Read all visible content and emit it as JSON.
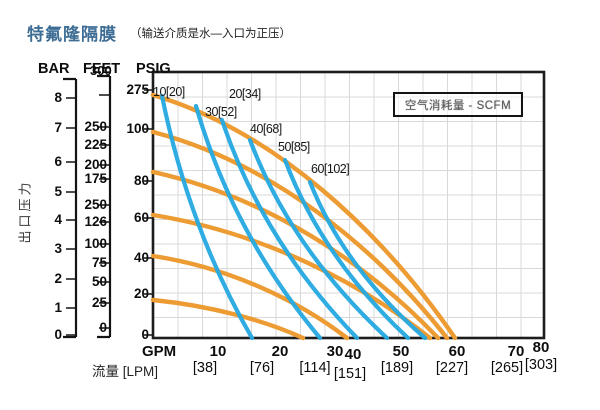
{
  "title": {
    "main": "特氟隆隔膜",
    "note": "（输送介质是水—入口为正压）"
  },
  "y_axis": {
    "axis_title": "出口压力",
    "bar": {
      "header": "BAR",
      "ticks": [
        "8",
        "7",
        "6",
        "5",
        "4",
        "3",
        "2",
        "1",
        "0"
      ]
    },
    "feet": {
      "header": "FEET",
      "header_overlap": "300",
      "ticks": [
        "250",
        "225",
        "200",
        "175",
        "250",
        "126",
        "100",
        "75",
        "50",
        "25",
        "0"
      ]
    },
    "psig": {
      "header": "PSIG",
      "ticks": [
        "275",
        "100",
        "80",
        "60",
        "40",
        "20",
        "0"
      ]
    }
  },
  "x_axis": {
    "unit_label": "GPM",
    "flow_label": "流量 [LPM]",
    "gpm_ticks": [
      "10",
      "20",
      "30",
      "40",
      "50",
      "60",
      "70",
      "80"
    ],
    "lpm_ticks": [
      "[38]",
      "[76]",
      "[114]",
      "[151]",
      "[189]",
      "[227]",
      "[265]",
      "[303]"
    ]
  },
  "legend": {
    "label": "空气消耗量 - SCFM"
  },
  "curve_labels": [
    "10[20]",
    "20[34]",
    "30[52]",
    "40[68]",
    "50[85]",
    "60[102]"
  ],
  "chart_data": {
    "type": "line",
    "title": "特氟隆隔膜（输送介质是水—入口为正压）",
    "xlabel": "流量 GPM [LPM]",
    "ylabel": "出口压力 BAR / FEET / PSIG",
    "x_ticks_gpm": [
      10,
      20,
      30,
      40,
      50,
      60,
      70,
      80
    ],
    "x_ticks_lpm": [
      38,
      76,
      114,
      151,
      189,
      227,
      265,
      303
    ],
    "y_ticks_bar": [
      0,
      1,
      2,
      3,
      4,
      5,
      6,
      7,
      8
    ],
    "y_ticks_feet_as_printed": [
      0,
      25,
      50,
      75,
      100,
      126,
      250,
      175,
      200,
      225,
      250
    ],
    "y_ticks_psig_as_printed": [
      0,
      20,
      40,
      60,
      80,
      100,
      275
    ],
    "grid": true,
    "legend": "空气消耗量 - SCFM",
    "legend_position": "top-right",
    "series": [
      {
        "name": "discharge-pressure-curve-1",
        "color": "#ED9B33",
        "units": "GPM,PSIG",
        "points": [
          [
            0,
            112
          ],
          [
            15,
            100
          ],
          [
            30,
            75
          ],
          [
            45,
            42
          ],
          [
            61,
            0
          ]
        ]
      },
      {
        "name": "discharge-pressure-curve-2",
        "color": "#ED9B33",
        "units": "GPM,PSIG",
        "points": [
          [
            0,
            98
          ],
          [
            15,
            86
          ],
          [
            30,
            62
          ],
          [
            45,
            34
          ],
          [
            60,
            0
          ]
        ]
      },
      {
        "name": "discharge-pressure-curve-3",
        "color": "#ED9B33",
        "units": "GPM,PSIG",
        "points": [
          [
            0,
            83
          ],
          [
            15,
            72
          ],
          [
            30,
            50
          ],
          [
            45,
            26
          ],
          [
            58,
            0
          ]
        ]
      },
      {
        "name": "discharge-pressure-curve-4",
        "color": "#ED9B33",
        "units": "GPM,PSIG",
        "points": [
          [
            0,
            60
          ],
          [
            15,
            52
          ],
          [
            30,
            36
          ],
          [
            45,
            18
          ],
          [
            57,
            0
          ]
        ]
      },
      {
        "name": "discharge-pressure-curve-5",
        "color": "#ED9B33",
        "units": "GPM,PSIG",
        "points": [
          [
            0,
            40
          ],
          [
            10,
            34
          ],
          [
            25,
            20
          ],
          [
            40,
            0
          ]
        ]
      },
      {
        "name": "discharge-pressure-curve-6",
        "color": "#ED9B33",
        "units": "GPM,PSIG",
        "points": [
          [
            0,
            16
          ],
          [
            10,
            11
          ],
          [
            20,
            6
          ],
          [
            31,
            0
          ]
        ]
      },
      {
        "name": "air-consumption-10[20]",
        "label": "10[20]",
        "color": "#27A9E1",
        "units": "GPM,PSIG",
        "points": [
          [
            2,
            118
          ],
          [
            10,
            62
          ],
          [
            20,
            0
          ]
        ]
      },
      {
        "name": "air-consumption-20[34]",
        "label": "20[34]",
        "color": "#27A9E1",
        "units": "GPM,PSIG",
        "points": [
          [
            9,
            104
          ],
          [
            20,
            52
          ],
          [
            34,
            0
          ]
        ]
      },
      {
        "name": "air-consumption-30[52]",
        "label": "30[52]",
        "color": "#27A9E1",
        "units": "GPM,PSIG",
        "points": [
          [
            14,
            92
          ],
          [
            28,
            46
          ],
          [
            42,
            0
          ]
        ]
      },
      {
        "name": "air-consumption-40[68]",
        "label": "40[68]",
        "color": "#27A9E1",
        "units": "GPM,PSIG",
        "points": [
          [
            20,
            80
          ],
          [
            34,
            40
          ],
          [
            48,
            0
          ]
        ]
      },
      {
        "name": "air-consumption-50[85]",
        "label": "50[85]",
        "color": "#27A9E1",
        "units": "GPM,PSIG",
        "points": [
          [
            27,
            68
          ],
          [
            40,
            34
          ],
          [
            52,
            0
          ]
        ]
      },
      {
        "name": "air-consumption-60[102]",
        "label": "60[102]",
        "color": "#27A9E1",
        "units": "GPM,PSIG",
        "points": [
          [
            32,
            58
          ],
          [
            44,
            28
          ],
          [
            56,
            0
          ]
        ]
      }
    ]
  }
}
